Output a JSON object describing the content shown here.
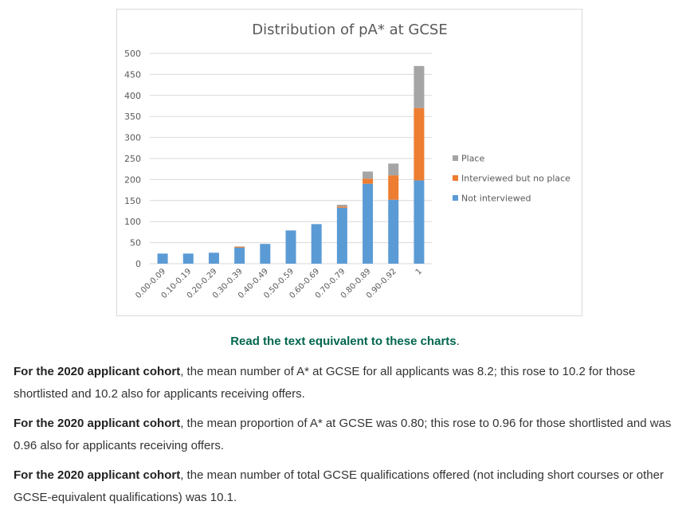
{
  "chart_data": {
    "type": "bar",
    "stacked": true,
    "title": "Distribution of pA* at GCSE",
    "categories": [
      "0.00-0.09",
      "0.10-0.19",
      "0.20-0.29",
      "0.30-0.39",
      "0.40-0.49",
      "0.50-0.59",
      "0.60-0.69",
      "0.70-0.79",
      "0.80-0.89",
      "0.90-0.92",
      "1"
    ],
    "series": [
      {
        "name": "Not interviewed",
        "color": "#5b9bd5",
        "values": [
          24,
          24,
          26,
          38,
          47,
          79,
          94,
          133,
          190,
          152,
          198
        ]
      },
      {
        "name": "Interviewed but no place",
        "color": "#ed7d31",
        "values": [
          0,
          0,
          0,
          2,
          0,
          0,
          0,
          3,
          12,
          58,
          172
        ]
      },
      {
        "name": "Place",
        "color": "#a5a5a5",
        "values": [
          0,
          0,
          0,
          1,
          0,
          0,
          0,
          4,
          17,
          28,
          100
        ]
      }
    ],
    "yticks": [
      "0",
      "50",
      "100",
      "150",
      "200",
      "250",
      "300",
      "350",
      "400",
      "450",
      "500"
    ],
    "ylim": [
      0,
      500
    ],
    "legend_order": [
      "Place",
      "Interviewed but no place",
      "Not interviewed"
    ],
    "legend_position": "right",
    "grid": true
  },
  "link": {
    "text": "Read the text equivalent to these charts",
    "trailing": "."
  },
  "paragraphs": [
    {
      "bold": "For the 2020 applicant cohort",
      "text": ", the mean number of A* at GCSE for all applicants was 8.2; this rose to 10.2 for those shortlisted and 10.2 also for applicants receiving offers."
    },
    {
      "bold": "For the 2020 applicant cohort",
      "text": ", the mean proportion of A* at GCSE was 0.80; this rose to 0.96 for those shortlisted and was 0.96 also for applicants receiving offers."
    },
    {
      "bold": "For the 2020 applicant cohort",
      "text": ", the mean number of total GCSE qualifications offered (not including short courses or other GCSE-equivalent qualifications) was 10.1."
    }
  ]
}
